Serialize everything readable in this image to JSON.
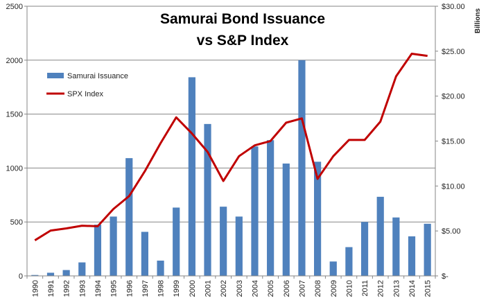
{
  "chart_data": {
    "type": "bar+line",
    "title_lines": [
      "Samurai Bond Issuance",
      "vs S&P Index"
    ],
    "right_axis_unit": "Billions",
    "categories": [
      "1990",
      "1991",
      "1992",
      "1993",
      "1994",
      "1995",
      "1996",
      "1997",
      "1998",
      "1999",
      "2000",
      "2001",
      "2002",
      "2003",
      "2004",
      "2005",
      "2006",
      "2007",
      "2008",
      "2009",
      "2010",
      "2011",
      "2012",
      "2013",
      "2014",
      "2015"
    ],
    "left_axis": {
      "ylim": [
        0,
        2500
      ],
      "ticks": [
        {
          "value": 0,
          "label": "0"
        },
        {
          "value": 500,
          "label": "500"
        },
        {
          "value": 1000,
          "label": "1000"
        },
        {
          "value": 1500,
          "label": "1500"
        },
        {
          "value": 2000,
          "label": "2000"
        },
        {
          "value": 2500,
          "label": "2500"
        }
      ]
    },
    "right_axis": {
      "ylim": [
        0,
        30
      ],
      "ticks": [
        {
          "value": 0,
          "label": "$-"
        },
        {
          "value": 5,
          "label": "$5.00"
        },
        {
          "value": 10,
          "label": "$10.00"
        },
        {
          "value": 15,
          "label": "$15.00"
        },
        {
          "value": 20,
          "label": "$20.00"
        },
        {
          "value": 25,
          "label": "$25.00"
        },
        {
          "value": 30,
          "label": "$30.00"
        }
      ]
    },
    "grid": true,
    "legend_placement": "upper-left",
    "series": [
      {
        "name": "SPX Index",
        "kind": "line",
        "axis": "left",
        "color": "#c00000",
        "values": [
          330,
          420,
          440,
          465,
          460,
          620,
          740,
          970,
          1230,
          1470,
          1320,
          1150,
          880,
          1110,
          1210,
          1250,
          1420,
          1460,
          900,
          1110,
          1260,
          1260,
          1430,
          1850,
          2060,
          2040
        ]
      },
      {
        "name": "Samurai Issuance",
        "kind": "bar",
        "axis": "right",
        "color": "#4f81bd",
        "values": [
          0.1,
          0.35,
          0.65,
          1.5,
          5.7,
          6.6,
          13.1,
          4.9,
          1.7,
          7.6,
          22.1,
          16.9,
          7.7,
          6.6,
          14.4,
          15.1,
          12.5,
          24.0,
          12.7,
          1.6,
          3.2,
          6.0,
          8.8,
          6.5,
          4.4,
          5.8
        ]
      }
    ]
  }
}
